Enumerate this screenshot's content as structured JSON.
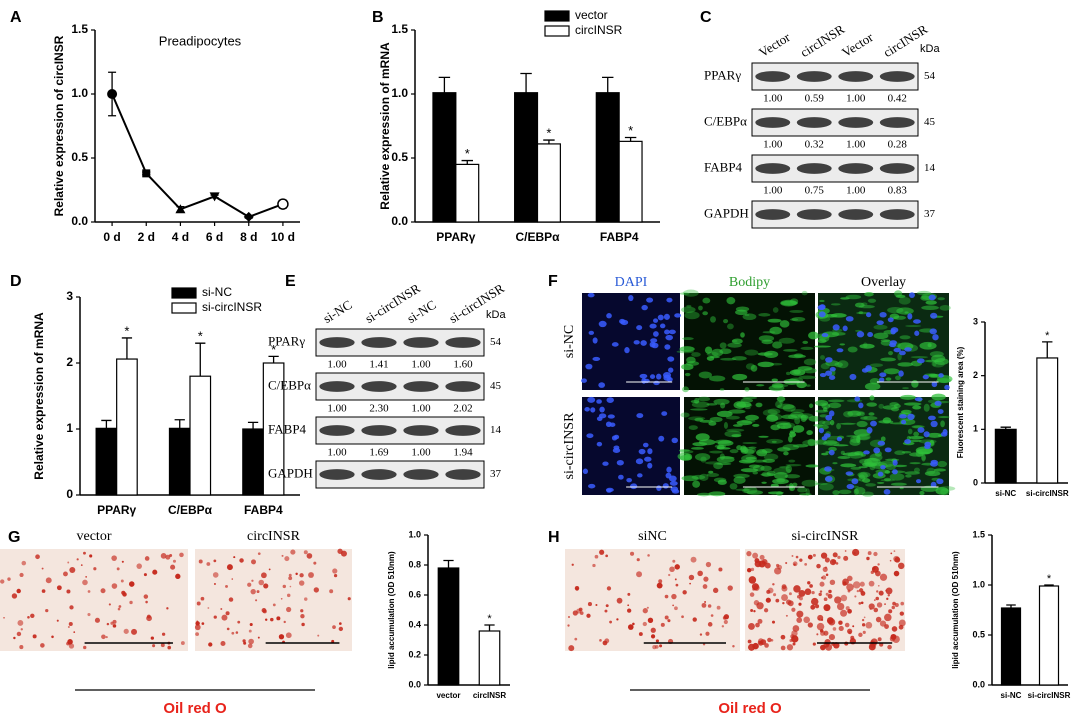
{
  "chart_data": [
    {
      "panel": "A",
      "type": "line",
      "title": "Preadipocytes",
      "y_label": "Relative expression of circINSR",
      "categories": [
        "0 d",
        "2 d",
        "4 d",
        "6 d",
        "8 d",
        "10 d"
      ],
      "series": [
        {
          "color": "#000000",
          "values": [
            1.0,
            0.38,
            0.1,
            0.2,
            0.04,
            0.14
          ],
          "errors": [
            0.17,
            0.01,
            0.02,
            0.01,
            0.01,
            0.03
          ],
          "markers": [
            "circle",
            "square",
            "triangle-up",
            "triangle-down",
            "diamond",
            "circle-open"
          ]
        }
      ],
      "ylim": [
        0,
        1.5
      ],
      "yticks": [
        {
          "value": 0,
          "label": "0.0"
        },
        0.5,
        {
          "value": 1,
          "label": "1.0"
        },
        1.5
      ]
    },
    {
      "panel": "B",
      "type": "bar",
      "y_label": "Relative expression of mRNA",
      "categories": [
        "PPARγ",
        "C/EBPα",
        "FABP4"
      ],
      "series": [
        {
          "name": "vector",
          "color": "#000000",
          "values": [
            1.01,
            1.01,
            1.01
          ],
          "errors": [
            0.12,
            0.15,
            0.12
          ]
        },
        {
          "name": "circINSR",
          "color": "#ffffff",
          "values": [
            0.45,
            0.61,
            0.63
          ],
          "errors": [
            0.03,
            0.03,
            0.03
          ],
          "annotations": [
            "*",
            "*",
            "*"
          ]
        }
      ],
      "ylim": [
        0,
        1.5
      ],
      "yticks": [
        {
          "value": 0,
          "label": "0.0"
        },
        0.5,
        {
          "value": 1,
          "label": "1.0"
        },
        1.5
      ]
    },
    {
      "panel": "D",
      "type": "bar",
      "y_label": "Relative expression of mRNA",
      "categories": [
        "PPARγ",
        "C/EBPα",
        "FABP4"
      ],
      "series": [
        {
          "name": "si-NC",
          "color": "#000000",
          "values": [
            1.01,
            1.01,
            1.0
          ],
          "errors": [
            0.12,
            0.13,
            0.1
          ]
        },
        {
          "name": "si-circINSR",
          "color": "#ffffff",
          "values": [
            2.06,
            1.8,
            2.0
          ],
          "errors": [
            0.32,
            0.5,
            0.1
          ],
          "annotations": [
            "*",
            "*",
            "*"
          ]
        }
      ],
      "ylim": [
        0,
        3
      ],
      "yticks": [
        0,
        1,
        2,
        3
      ]
    },
    {
      "type": "bar",
      "y_label": "Fluorescent staining area (%)",
      "categories": [
        "si-NC",
        "si-circINSR"
      ],
      "series": [
        {
          "colors": [
            "#000000",
            "#ffffff"
          ],
          "values": [
            1.0,
            2.33
          ],
          "errors": [
            0.04,
            0.3
          ],
          "annotations": [
            null,
            "*"
          ]
        }
      ],
      "ylim": [
        0,
        3
      ],
      "yticks": [
        0,
        1,
        2,
        3
      ]
    },
    {
      "type": "bar",
      "y_label": "lipid accumulation (OD 510nm)",
      "categories": [
        "vector",
        "circINSR"
      ],
      "series": [
        {
          "colors": [
            "#000000",
            "#ffffff"
          ],
          "values": [
            0.78,
            0.36
          ],
          "errors": [
            0.05,
            0.04
          ],
          "annotations": [
            null,
            "*"
          ]
        }
      ],
      "ylim": [
        0,
        1
      ],
      "yticks": [
        {
          "value": 0,
          "label": "0.0"
        },
        0.2,
        0.4,
        0.6,
        0.8,
        {
          "value": 1,
          "label": "1.0"
        }
      ]
    },
    {
      "type": "bar",
      "y_label": "lipid accumulation (OD 510nm)",
      "categories": [
        "si-NC",
        "si-circINSR"
      ],
      "series": [
        {
          "colors": [
            "#000000",
            "#ffffff"
          ],
          "values": [
            0.77,
            0.99
          ],
          "errors": [
            0.03,
            0.01
          ],
          "annotations": [
            null,
            "*"
          ]
        }
      ],
      "ylim": [
        0,
        1.5
      ],
      "yticks": [
        {
          "value": 0,
          "label": "0.0"
        },
        0.5,
        {
          "value": 1,
          "label": "1.0"
        },
        1.5
      ]
    }
  ],
  "blots": [
    {
      "panel": "C",
      "columns": [
        "Vector",
        "circINSR",
        "Vector",
        "circINSR"
      ],
      "unit": "kDa",
      "rows": [
        {
          "name": "PPARγ",
          "kda": 54,
          "ratios": [
            "1.00",
            "0.59",
            "1.00",
            "0.42"
          ]
        },
        {
          "name": "C/EBPα",
          "kda": 45,
          "ratios": [
            "1.00",
            "0.32",
            "1.00",
            "0.28"
          ]
        },
        {
          "name": "FABP4",
          "kda": 14,
          "ratios": [
            "1.00",
            "0.75",
            "1.00",
            "0.83"
          ]
        },
        {
          "name": "GAPDH",
          "kda": 37
        }
      ]
    },
    {
      "panel": "E",
      "columns": [
        "si-NC",
        "si-circINSR",
        "si-NC",
        "si-circINSR"
      ],
      "unit": "kDa",
      "rows": [
        {
          "name": "PPARγ",
          "kda": 54,
          "ratios": [
            "1.00",
            "1.41",
            "1.00",
            "1.60"
          ]
        },
        {
          "name": "C/EBPα",
          "kda": 45,
          "ratios": [
            "1.00",
            "2.30",
            "1.00",
            "2.02"
          ]
        },
        {
          "name": "FABP4",
          "kda": 14,
          "ratios": [
            "1.00",
            "1.69",
            "1.00",
            "1.94"
          ]
        },
        {
          "name": "GAPDH",
          "kda": 37
        }
      ]
    }
  ],
  "images": [
    {
      "panel": "F",
      "columns": [
        "DAPI",
        "Bodipy",
        "Overlay"
      ],
      "rows": [
        "si-NC",
        "si-circINSR"
      ]
    },
    {
      "panel": "G",
      "labels": [
        "vector",
        "circINSR"
      ],
      "caption": "Oil red O"
    },
    {
      "panel": "H",
      "labels": [
        "siNC",
        "si-circINSR"
      ],
      "caption": "Oil red O"
    }
  ]
}
